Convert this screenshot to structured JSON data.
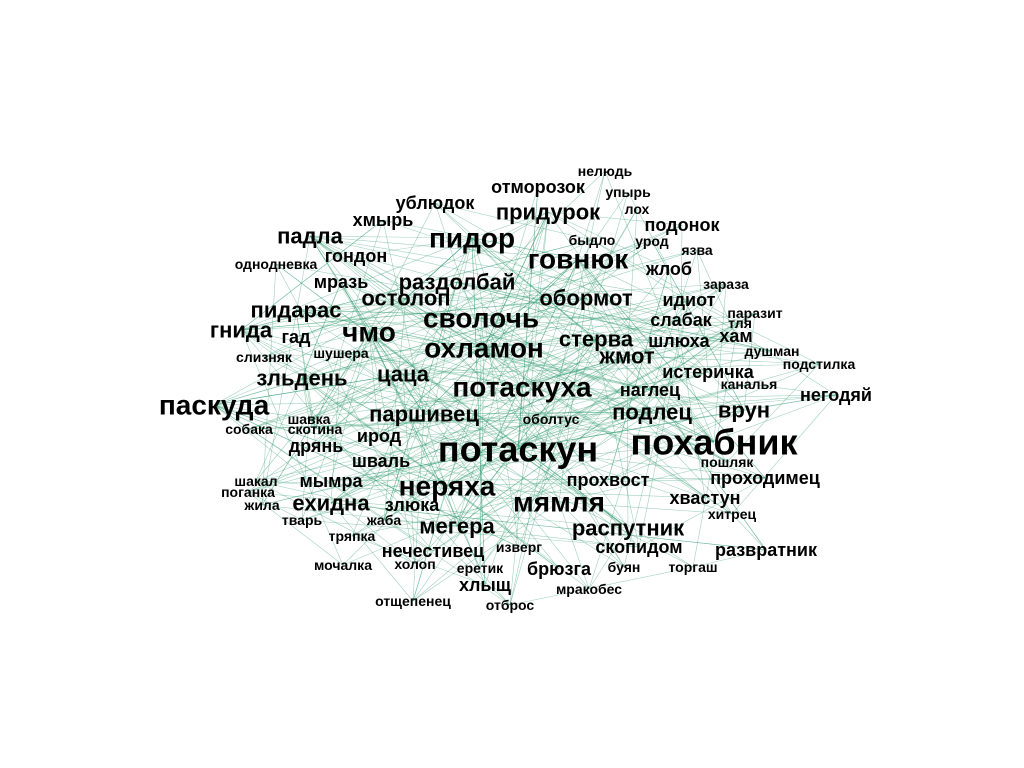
{
  "colors": {
    "edge": "#2e9a6e",
    "label": "#000000",
    "background": "#ffffff"
  },
  "graph": {
    "nodes": [
      {
        "id": "потаскун",
        "weight": 5
      },
      {
        "id": "похабник",
        "weight": 5
      },
      {
        "id": "паскуда",
        "weight": 4
      },
      {
        "id": "потаскуха",
        "weight": 4
      },
      {
        "id": "неряха",
        "weight": 4
      },
      {
        "id": "мямля",
        "weight": 4
      },
      {
        "id": "охламон",
        "weight": 4
      },
      {
        "id": "сволочь",
        "weight": 4
      },
      {
        "id": "чмо",
        "weight": 4
      },
      {
        "id": "пидор",
        "weight": 4
      },
      {
        "id": "говнюк",
        "weight": 4
      },
      {
        "id": "обормот",
        "weight": 3
      },
      {
        "id": "придурок",
        "weight": 3
      },
      {
        "id": "гнида",
        "weight": 3
      },
      {
        "id": "зльдень",
        "weight": 3
      },
      {
        "id": "паршивец",
        "weight": 3
      },
      {
        "id": "подлец",
        "weight": 3
      },
      {
        "id": "врун",
        "weight": 3
      },
      {
        "id": "ехидна",
        "weight": 3
      },
      {
        "id": "мегера",
        "weight": 3
      },
      {
        "id": "распутник",
        "weight": 3
      },
      {
        "id": "жмот",
        "weight": 3
      },
      {
        "id": "остолоп",
        "weight": 3
      },
      {
        "id": "раздолбай",
        "weight": 3
      },
      {
        "id": "падла",
        "weight": 3
      },
      {
        "id": "пидарас",
        "weight": 3
      },
      {
        "id": "цаца",
        "weight": 3
      },
      {
        "id": "стерва",
        "weight": 3
      },
      {
        "id": "шлюха",
        "weight": 2
      },
      {
        "id": "слабак",
        "weight": 2
      },
      {
        "id": "гондон",
        "weight": 2
      },
      {
        "id": "мразь",
        "weight": 2
      },
      {
        "id": "негодяй",
        "weight": 2
      },
      {
        "id": "шваль",
        "weight": 2
      },
      {
        "id": "мымра",
        "weight": 2
      },
      {
        "id": "злюка",
        "weight": 2
      },
      {
        "id": "брюзга",
        "weight": 2
      },
      {
        "id": "хлыщ",
        "weight": 2
      },
      {
        "id": "прохвост",
        "weight": 2
      },
      {
        "id": "хвастун",
        "weight": 2
      },
      {
        "id": "развратник",
        "weight": 2
      },
      {
        "id": "подонок",
        "weight": 2
      },
      {
        "id": "жлоб",
        "weight": 2
      },
      {
        "id": "хам",
        "weight": 2
      },
      {
        "id": "ирод",
        "weight": 2
      },
      {
        "id": "дрянь",
        "weight": 2
      },
      {
        "id": "гад",
        "weight": 2
      },
      {
        "id": "отморозок",
        "weight": 2
      },
      {
        "id": "ублюдок",
        "weight": 2
      },
      {
        "id": "хмырь",
        "weight": 2
      },
      {
        "id": "идиот",
        "weight": 2
      },
      {
        "id": "наглец",
        "weight": 2
      },
      {
        "id": "истеричка",
        "weight": 2
      },
      {
        "id": "скопидом",
        "weight": 2
      },
      {
        "id": "проходимец",
        "weight": 2
      },
      {
        "id": "нечестивец",
        "weight": 2
      },
      {
        "id": "изверг",
        "weight": 1
      },
      {
        "id": "быдло",
        "weight": 1
      },
      {
        "id": "урод",
        "weight": 1
      },
      {
        "id": "оболтус",
        "weight": 1
      },
      {
        "id": "пошляк",
        "weight": 1
      },
      {
        "id": "слизняк",
        "weight": 1
      },
      {
        "id": "шушера",
        "weight": 1
      },
      {
        "id": "скотина",
        "weight": 1
      },
      {
        "id": "собака",
        "weight": 1
      },
      {
        "id": "шавка",
        "weight": 1
      },
      {
        "id": "шакал",
        "weight": 1
      },
      {
        "id": "поганка",
        "weight": 1
      },
      {
        "id": "жила",
        "weight": 1
      },
      {
        "id": "тварь",
        "weight": 1
      },
      {
        "id": "жаба",
        "weight": 1
      },
      {
        "id": "тряпка",
        "weight": 1
      },
      {
        "id": "мочалка",
        "weight": 1
      },
      {
        "id": "холоп",
        "weight": 1
      },
      {
        "id": "еретик",
        "weight": 1
      },
      {
        "id": "буян",
        "weight": 1
      },
      {
        "id": "торгаш",
        "weight": 1
      },
      {
        "id": "хитрец",
        "weight": 1
      },
      {
        "id": "мракобес",
        "weight": 1
      },
      {
        "id": "отщепенец",
        "weight": 1
      },
      {
        "id": "отброс",
        "weight": 1
      },
      {
        "id": "нелюдь",
        "weight": 1
      },
      {
        "id": "упырь",
        "weight": 1
      },
      {
        "id": "лох",
        "weight": 1
      },
      {
        "id": "язва",
        "weight": 1
      },
      {
        "id": "зараза",
        "weight": 1
      },
      {
        "id": "паразит",
        "weight": 1
      },
      {
        "id": "тля",
        "weight": 1
      },
      {
        "id": "душман",
        "weight": 1
      },
      {
        "id": "подстилка",
        "weight": 1
      },
      {
        "id": "каналья",
        "weight": 1
      },
      {
        "id": "однодневка",
        "weight": 1
      }
    ]
  }
}
